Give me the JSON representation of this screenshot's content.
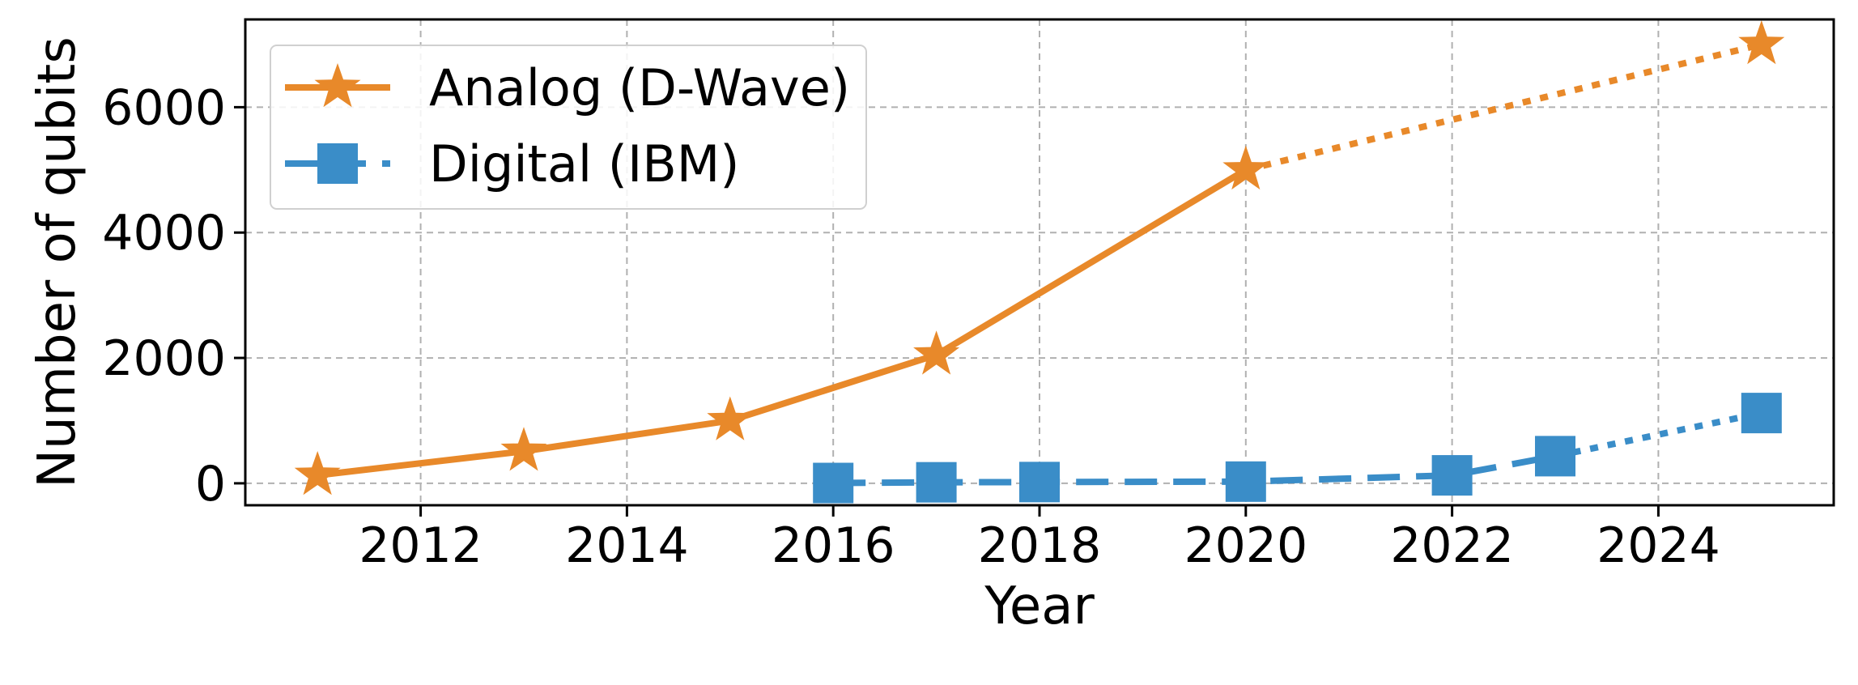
{
  "chart_data": {
    "type": "line",
    "xlabel": "Year",
    "ylabel": "Number of qubits",
    "xlim": [
      2010.3,
      2025.7
    ],
    "ylim": [
      -350,
      7400
    ],
    "grid": true,
    "legend_position": "top-left",
    "x_ticks": [
      2012,
      2014,
      2016,
      2018,
      2020,
      2022,
      2024
    ],
    "y_ticks": [
      0,
      2000,
      4000,
      6000
    ],
    "series": [
      {
        "name": "Analog (D-Wave)",
        "color": "#E8892A",
        "marker": "star",
        "line_style": "solid",
        "x": [
          2011,
          2013,
          2015,
          2017,
          2020
        ],
        "y": [
          128,
          512,
          1000,
          2048,
          5000
        ],
        "projection": {
          "line_style": "dotted",
          "x": [
            2020,
            2025
          ],
          "y": [
            5000,
            7000
          ]
        }
      },
      {
        "name": "Digital (IBM)",
        "color": "#3A8DC8",
        "marker": "square",
        "line_style": "dashed",
        "x": [
          2016,
          2017,
          2018,
          2020,
          2022,
          2023
        ],
        "y": [
          5,
          16,
          20,
          27,
          127,
          433
        ],
        "projection": {
          "line_style": "dotted",
          "x": [
            2023,
            2025
          ],
          "y": [
            433,
            1121
          ]
        }
      }
    ]
  }
}
